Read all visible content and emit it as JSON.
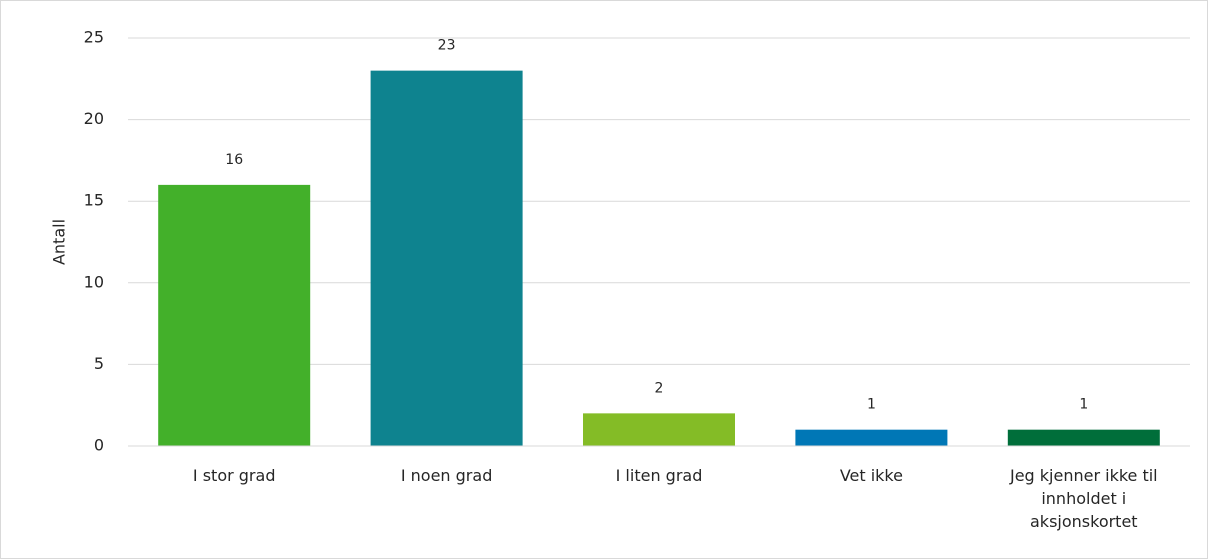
{
  "chart_data": {
    "type": "bar",
    "y_label": "Antall",
    "categories": [
      "I stor grad",
      "I noen grad",
      "I liten grad",
      "Vet ikke",
      "Jeg kjenner ikke til innholdet i aksjonskortet"
    ],
    "values": [
      16,
      23,
      2,
      1,
      1
    ],
    "colors": [
      "#43b02a",
      "#0e838f",
      "#84bc26",
      "#0077b6",
      "#006e3a"
    ],
    "ylim": [
      0,
      25
    ],
    "yticks": [
      0,
      5,
      10,
      15,
      20,
      25
    ],
    "grid": true
  }
}
